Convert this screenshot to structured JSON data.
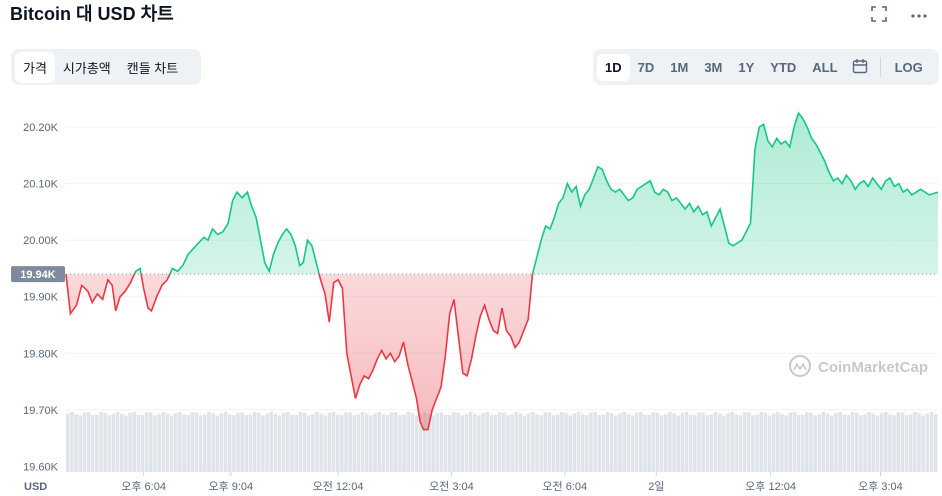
{
  "header": {
    "title": "Bitcoin 대 USD 차트",
    "fullscreen_icon": "expand-icon",
    "more_icon": "more-icon"
  },
  "tabs": [
    {
      "label": "가격",
      "active": true
    },
    {
      "label": "시가총액",
      "active": false
    },
    {
      "label": "캔들 차트",
      "active": false
    }
  ],
  "ranges": [
    {
      "label": "1D",
      "active": true
    },
    {
      "label": "7D",
      "active": false
    },
    {
      "label": "1M",
      "active": false
    },
    {
      "label": "3M",
      "active": false
    },
    {
      "label": "1Y",
      "active": false
    },
    {
      "label": "YTD",
      "active": false
    },
    {
      "label": "ALL",
      "active": false
    }
  ],
  "calendar_icon": "calendar-icon",
  "log_label": "LOG",
  "watermark": "CoinMarketCap",
  "colors": {
    "up": "#16c784",
    "down": "#ea3943",
    "ref_line": "#808a9d"
  },
  "chart_data": {
    "type": "area",
    "title": "Bitcoin 대 USD 차트",
    "ylabel": "",
    "xlabel": "",
    "currency_label": "USD",
    "reference_value": 19940,
    "reference_label": "19.94K",
    "ylim": [
      19590,
      20255
    ],
    "yticks": [
      {
        "v": 20200,
        "label": "20.20K"
      },
      {
        "v": 20100,
        "label": "20.10K"
      },
      {
        "v": 20000,
        "label": "20.00K"
      },
      {
        "v": 19900,
        "label": "19.90K"
      },
      {
        "v": 19800,
        "label": "19.80K"
      },
      {
        "v": 19700,
        "label": "19.70K"
      },
      {
        "v": 19600,
        "label": "19.60K"
      }
    ],
    "xlim": [
      0,
      1
    ],
    "xticks": [
      {
        "x": 0.089,
        "label": "오후 6:04"
      },
      {
        "x": 0.189,
        "label": "오후 9:04"
      },
      {
        "x": 0.312,
        "label": "오전 12:04"
      },
      {
        "x": 0.442,
        "label": "오전 3:04"
      },
      {
        "x": 0.572,
        "label": "오전 6:04"
      },
      {
        "x": 0.677,
        "label": "2일"
      },
      {
        "x": 0.808,
        "label": "오후 12:04"
      },
      {
        "x": 0.934,
        "label": "오후 3:04"
      }
    ],
    "price_points": [
      [
        0.0,
        19940
      ],
      [
        0.005,
        19870
      ],
      [
        0.012,
        19885
      ],
      [
        0.018,
        19920
      ],
      [
        0.025,
        19910
      ],
      [
        0.03,
        19890
      ],
      [
        0.036,
        19905
      ],
      [
        0.042,
        19895
      ],
      [
        0.048,
        19930
      ],
      [
        0.053,
        19920
      ],
      [
        0.057,
        19875
      ],
      [
        0.062,
        19900
      ],
      [
        0.068,
        19910
      ],
      [
        0.074,
        19925
      ],
      [
        0.08,
        19945
      ],
      [
        0.085,
        19950
      ],
      [
        0.089,
        19915
      ],
      [
        0.094,
        19880
      ],
      [
        0.098,
        19875
      ],
      [
        0.104,
        19900
      ],
      [
        0.11,
        19920
      ],
      [
        0.116,
        19930
      ],
      [
        0.122,
        19950
      ],
      [
        0.128,
        19945
      ],
      [
        0.134,
        19955
      ],
      [
        0.14,
        19975
      ],
      [
        0.146,
        19985
      ],
      [
        0.152,
        19995
      ],
      [
        0.158,
        20005
      ],
      [
        0.163,
        20000
      ],
      [
        0.168,
        20020
      ],
      [
        0.174,
        20010
      ],
      [
        0.18,
        20015
      ],
      [
        0.186,
        20030
      ],
      [
        0.191,
        20070
      ],
      [
        0.196,
        20085
      ],
      [
        0.202,
        20075
      ],
      [
        0.208,
        20085
      ],
      [
        0.213,
        20060
      ],
      [
        0.218,
        20040
      ],
      [
        0.223,
        20000
      ],
      [
        0.228,
        19960
      ],
      [
        0.233,
        19945
      ],
      [
        0.238,
        19975
      ],
      [
        0.243,
        19995
      ],
      [
        0.248,
        20010
      ],
      [
        0.253,
        20020
      ],
      [
        0.258,
        20010
      ],
      [
        0.263,
        19990
      ],
      [
        0.268,
        19955
      ],
      [
        0.272,
        19960
      ],
      [
        0.277,
        20000
      ],
      [
        0.282,
        19990
      ],
      [
        0.287,
        19960
      ],
      [
        0.292,
        19930
      ],
      [
        0.297,
        19905
      ],
      [
        0.302,
        19855
      ],
      [
        0.307,
        19925
      ],
      [
        0.312,
        19930
      ],
      [
        0.317,
        19915
      ],
      [
        0.322,
        19800
      ],
      [
        0.327,
        19760
      ],
      [
        0.332,
        19720
      ],
      [
        0.337,
        19745
      ],
      [
        0.342,
        19760
      ],
      [
        0.347,
        19755
      ],
      [
        0.352,
        19770
      ],
      [
        0.357,
        19790
      ],
      [
        0.362,
        19805
      ],
      [
        0.367,
        19790
      ],
      [
        0.372,
        19800
      ],
      [
        0.377,
        19785
      ],
      [
        0.382,
        19795
      ],
      [
        0.387,
        19820
      ],
      [
        0.392,
        19780
      ],
      [
        0.397,
        19750
      ],
      [
        0.402,
        19720
      ],
      [
        0.406,
        19680
      ],
      [
        0.41,
        19665
      ],
      [
        0.415,
        19665
      ],
      [
        0.42,
        19700
      ],
      [
        0.425,
        19720
      ],
      [
        0.43,
        19740
      ],
      [
        0.435,
        19795
      ],
      [
        0.44,
        19870
      ],
      [
        0.445,
        19895
      ],
      [
        0.45,
        19830
      ],
      [
        0.455,
        19765
      ],
      [
        0.46,
        19760
      ],
      [
        0.465,
        19790
      ],
      [
        0.47,
        19830
      ],
      [
        0.475,
        19865
      ],
      [
        0.48,
        19885
      ],
      [
        0.485,
        19860
      ],
      [
        0.49,
        19840
      ],
      [
        0.495,
        19835
      ],
      [
        0.5,
        19880
      ],
      [
        0.505,
        19840
      ],
      [
        0.51,
        19830
      ],
      [
        0.515,
        19810
      ],
      [
        0.52,
        19820
      ],
      [
        0.525,
        19840
      ],
      [
        0.53,
        19860
      ],
      [
        0.535,
        19940
      ],
      [
        0.54,
        19970
      ],
      [
        0.545,
        20000
      ],
      [
        0.55,
        20025
      ],
      [
        0.555,
        20020
      ],
      [
        0.56,
        20040
      ],
      [
        0.565,
        20065
      ],
      [
        0.57,
        20075
      ],
      [
        0.575,
        20100
      ],
      [
        0.58,
        20085
      ],
      [
        0.585,
        20095
      ],
      [
        0.59,
        20060
      ],
      [
        0.595,
        20080
      ],
      [
        0.6,
        20090
      ],
      [
        0.605,
        20110
      ],
      [
        0.61,
        20130
      ],
      [
        0.615,
        20125
      ],
      [
        0.62,
        20105
      ],
      [
        0.625,
        20090
      ],
      [
        0.63,
        20085
      ],
      [
        0.635,
        20090
      ],
      [
        0.64,
        20080
      ],
      [
        0.645,
        20070
      ],
      [
        0.65,
        20075
      ],
      [
        0.655,
        20090
      ],
      [
        0.66,
        20095
      ],
      [
        0.665,
        20100
      ],
      [
        0.67,
        20105
      ],
      [
        0.675,
        20085
      ],
      [
        0.68,
        20080
      ],
      [
        0.685,
        20090
      ],
      [
        0.69,
        20085
      ],
      [
        0.695,
        20070
      ],
      [
        0.7,
        20075
      ],
      [
        0.705,
        20065
      ],
      [
        0.71,
        20055
      ],
      [
        0.715,
        20065
      ],
      [
        0.72,
        20050
      ],
      [
        0.725,
        20060
      ],
      [
        0.73,
        20045
      ],
      [
        0.735,
        20050
      ],
      [
        0.74,
        20025
      ],
      [
        0.745,
        20040
      ],
      [
        0.75,
        20055
      ],
      [
        0.755,
        20025
      ],
      [
        0.76,
        19995
      ],
      [
        0.765,
        19990
      ],
      [
        0.77,
        19995
      ],
      [
        0.775,
        20000
      ],
      [
        0.78,
        20015
      ],
      [
        0.785,
        20030
      ],
      [
        0.79,
        20160
      ],
      [
        0.795,
        20200
      ],
      [
        0.8,
        20205
      ],
      [
        0.805,
        20175
      ],
      [
        0.81,
        20165
      ],
      [
        0.815,
        20180
      ],
      [
        0.82,
        20170
      ],
      [
        0.825,
        20175
      ],
      [
        0.83,
        20165
      ],
      [
        0.835,
        20200
      ],
      [
        0.84,
        20225
      ],
      [
        0.845,
        20215
      ],
      [
        0.85,
        20200
      ],
      [
        0.855,
        20180
      ],
      [
        0.86,
        20170
      ],
      [
        0.865,
        20155
      ],
      [
        0.87,
        20140
      ],
      [
        0.875,
        20120
      ],
      [
        0.88,
        20105
      ],
      [
        0.885,
        20110
      ],
      [
        0.89,
        20100
      ],
      [
        0.895,
        20115
      ],
      [
        0.9,
        20105
      ],
      [
        0.905,
        20090
      ],
      [
        0.91,
        20100
      ],
      [
        0.915,
        20105
      ],
      [
        0.92,
        20095
      ],
      [
        0.925,
        20110
      ],
      [
        0.93,
        20100
      ],
      [
        0.935,
        20090
      ],
      [
        0.94,
        20105
      ],
      [
        0.945,
        20110
      ],
      [
        0.95,
        20095
      ],
      [
        0.955,
        20100
      ],
      [
        0.96,
        20085
      ],
      [
        0.965,
        20090
      ],
      [
        0.97,
        20080
      ],
      [
        0.975,
        20085
      ],
      [
        0.98,
        20090
      ],
      [
        0.99,
        20080
      ],
      [
        1.0,
        20085
      ]
    ],
    "volume_level": 0.55
  }
}
